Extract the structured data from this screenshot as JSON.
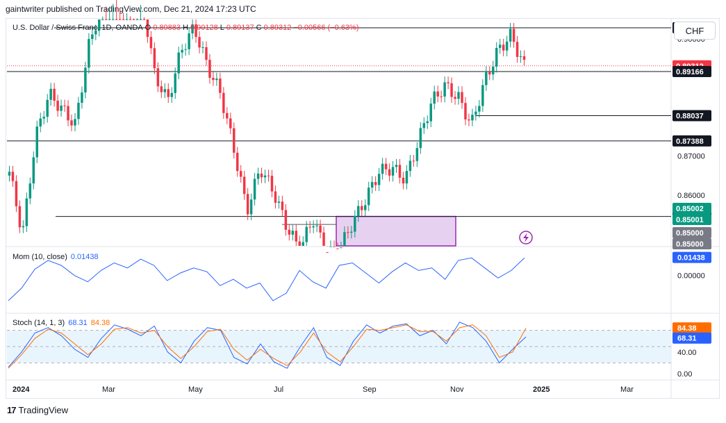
{
  "header": {
    "publisher": "gaintwriter published on TradingView.com, Dec 21, 2024 17:23 UTC"
  },
  "legend": {
    "title": "U.S. Dollar / Swiss Franc, 1D, OANDA",
    "o_label": "O",
    "o_value": "0.89883",
    "h_label": "H",
    "h_value": "0.90128",
    "l_label": "L",
    "l_value": "0.89137",
    "c_label": "C",
    "c_value": "0.89312",
    "change": "−0.00566 (−0.63%)"
  },
  "currency_button": "CHF",
  "mom_legend": {
    "title": "Mom (10, close)",
    "value": "0.01438"
  },
  "stoch_legend": {
    "title": "Stoch (14, 1, 3)",
    "k_value": "68.31",
    "d_value": "84.38"
  },
  "footer": {
    "brand": "TradingView",
    "logo": "17"
  },
  "colors": {
    "up": "#089981",
    "down": "#f23645",
    "mom": "#2962ff",
    "stoch_k": "#2962ff",
    "stoch_d": "#ff6d00",
    "box_fill": "#e6d2f0",
    "box_stroke": "#9c27b0"
  },
  "chart_data": [
    {
      "type": "candlestick",
      "title": "U.S. Dollar / Swiss Franc, 1D, OANDA",
      "ylim": [
        0.85,
        0.905
      ],
      "x_ticks": [
        "2024",
        "Mar",
        "May",
        "Jul",
        "Sep",
        "Nov",
        "2025",
        "Mar"
      ],
      "y_ticks": [
        "0.90000",
        "0.87000",
        "0.86000"
      ],
      "price_labels": [
        {
          "value": "0.90286",
          "style": "line"
        },
        {
          "value": "0.89312",
          "style": "current"
        },
        {
          "value": "0.89166",
          "style": "line"
        },
        {
          "value": "0.88037",
          "style": "line"
        },
        {
          "value": "0.87388",
          "style": "line"
        },
        {
          "value": "0.85455",
          "style": "line"
        },
        {
          "value": "0.85002",
          "style": "green"
        },
        {
          "value": "0.85001",
          "style": "green"
        },
        {
          "value": "0.85000",
          "style": "gray"
        },
        {
          "value": "0.85000",
          "style": "gray"
        }
      ],
      "horizontal_levels": [
        0.90286,
        0.89166,
        0.88037,
        0.87388,
        0.85455
      ],
      "current_price": 0.89312,
      "series": [
        {
          "date": "2024-01",
          "close": 0.866
        },
        {
          "date": "2024-01",
          "close": 0.85
        },
        {
          "date": "2024-02",
          "close": 0.875
        },
        {
          "date": "2024-02",
          "close": 0.886
        },
        {
          "date": "2024-03",
          "close": 0.882
        },
        {
          "date": "2024-03",
          "close": 0.878
        },
        {
          "date": "2024-04",
          "close": 0.898
        },
        {
          "date": "2024-04",
          "close": 0.909
        },
        {
          "date": "2024-05",
          "close": 0.914
        },
        {
          "date": "2024-05",
          "close": 0.906
        },
        {
          "date": "2024-06",
          "close": 0.912
        },
        {
          "date": "2024-06",
          "close": 0.891
        },
        {
          "date": "2024-06",
          "close": 0.884
        },
        {
          "date": "2024-07",
          "close": 0.897
        },
        {
          "date": "2024-07",
          "close": 0.903
        },
        {
          "date": "2024-07",
          "close": 0.893
        },
        {
          "date": "2024-07",
          "close": 0.886
        },
        {
          "date": "2024-08",
          "close": 0.872
        },
        {
          "date": "2024-08",
          "close": 0.856
        },
        {
          "date": "2024-08",
          "close": 0.867
        },
        {
          "date": "2024-08",
          "close": 0.861
        },
        {
          "date": "2024-08",
          "close": 0.852
        },
        {
          "date": "2024-09",
          "close": 0.846
        },
        {
          "date": "2024-09",
          "close": 0.854
        },
        {
          "date": "2024-09",
          "close": 0.845
        },
        {
          "date": "2024-09",
          "close": 0.846
        },
        {
          "date": "2024-10",
          "close": 0.853
        },
        {
          "date": "2024-10",
          "close": 0.859
        },
        {
          "date": "2024-10",
          "close": 0.866
        },
        {
          "date": "2024-10",
          "close": 0.867
        },
        {
          "date": "2024-10",
          "close": 0.864
        },
        {
          "date": "2024-11",
          "close": 0.874
        },
        {
          "date": "2024-11",
          "close": 0.884
        },
        {
          "date": "2024-11",
          "close": 0.888
        },
        {
          "date": "2024-11",
          "close": 0.885
        },
        {
          "date": "2024-11",
          "close": 0.878
        },
        {
          "date": "2024-12",
          "close": 0.889
        },
        {
          "date": "2024-12",
          "close": 0.897
        },
        {
          "date": "2024-12",
          "close": 0.901
        },
        {
          "date": "2024-12",
          "close": 0.893
        }
      ],
      "highlight_zone": {
        "y_top": 0.85455,
        "y_bottom": 0.84,
        "x_start": "2024-08",
        "x_end": "2024-10"
      },
      "indicator_line": {
        "y": 0.852,
        "x_start": "2024-07",
        "x_end": "2024-08"
      }
    },
    {
      "type": "line",
      "title": "Mom (10, close)",
      "y_ticks": [
        "0.00000"
      ],
      "last_value": "0.01438",
      "series": [
        {
          "name": "Mom",
          "values": [
            -0.02,
            -0.01,
            0.005,
            0.012,
            0.008,
            0.0,
            -0.005,
            0.004,
            0.01,
            0.006,
            0.013,
            0.008,
            -0.004,
            0.002,
            0.006,
            0.003,
            -0.008,
            -0.003,
            -0.01,
            -0.006,
            -0.02,
            -0.014,
            0.004,
            -0.005,
            -0.01,
            0.008,
            0.01,
            0.002,
            -0.006,
            0.003,
            0.01,
            0.004,
            0.006,
            -0.003,
            0.012,
            0.014,
            0.006,
            -0.002,
            0.004,
            0.014
          ]
        }
      ]
    },
    {
      "type": "line",
      "title": "Stoch (14, 1, 3)",
      "y_ticks": [
        "40.00",
        "0.00"
      ],
      "band": [
        20,
        80
      ],
      "series": [
        {
          "name": "%K",
          "last_value": "68.31",
          "values": [
            12,
            40,
            75,
            85,
            70,
            45,
            30,
            65,
            90,
            82,
            70,
            88,
            40,
            20,
            60,
            85,
            80,
            30,
            18,
            55,
            22,
            10,
            50,
            85,
            30,
            15,
            60,
            90,
            75,
            88,
            92,
            70,
            80,
            55,
            95,
            85,
            60,
            20,
            45,
            68
          ]
        },
        {
          "name": "%D",
          "last_value": "84.38",
          "values": [
            10,
            35,
            65,
            82,
            75,
            55,
            35,
            55,
            82,
            85,
            75,
            80,
            50,
            28,
            50,
            78,
            82,
            45,
            25,
            45,
            28,
            15,
            40,
            75,
            40,
            22,
            50,
            82,
            80,
            85,
            90,
            78,
            78,
            60,
            85,
            90,
            70,
            30,
            40,
            84
          ]
        }
      ]
    }
  ]
}
